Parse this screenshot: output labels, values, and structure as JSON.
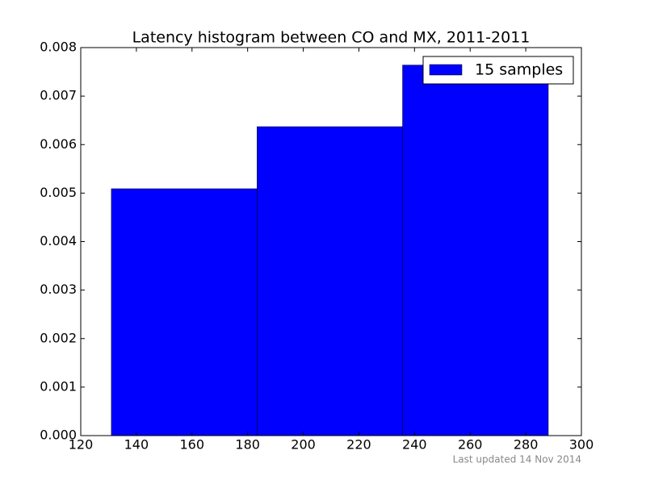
{
  "chart_data": {
    "type": "histogram",
    "title": "Latency histogram between CO and MX, 2011-2011",
    "bins": [
      131,
      183.4,
      235.7,
      288.1
    ],
    "values": [
      0.00509,
      0.00637,
      0.00764
    ],
    "color": "#0000ff",
    "series_name": "15 samples",
    "legend": "upper right",
    "xlim": [
      120,
      300
    ],
    "xticks": [
      120,
      140,
      160,
      180,
      200,
      220,
      240,
      260,
      280,
      300
    ],
    "ylim": [
      0,
      0.008
    ],
    "yticks": [
      {
        "value": 0,
        "label": "0.000"
      },
      0.001,
      0.002,
      0.003,
      0.004,
      0.005,
      0.006,
      0.007,
      0.008
    ],
    "footnote": "Last updated 14 Nov 2014"
  }
}
